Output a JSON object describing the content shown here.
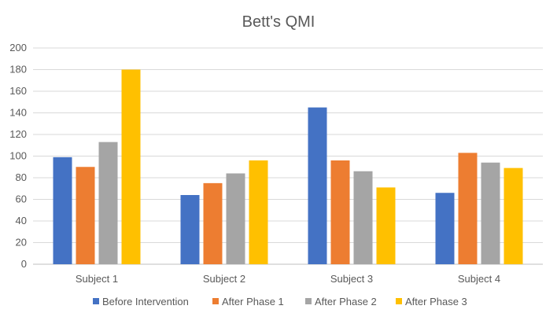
{
  "chart_data": {
    "type": "bar",
    "title": "Bett's QMI",
    "xlabel": "",
    "ylabel": "",
    "categories": [
      "Subject 1",
      "Subject 2",
      "Subject 3",
      "Subject 4"
    ],
    "ylim": [
      0,
      200
    ],
    "yticks": [
      0,
      20,
      40,
      60,
      80,
      100,
      120,
      140,
      160,
      180,
      200
    ],
    "grid": true,
    "legend_position": "bottom",
    "series": [
      {
        "name": "Before Intervention",
        "color": "#4472C4",
        "values": [
          99,
          64,
          145,
          66
        ]
      },
      {
        "name": "After Phase 1",
        "color": "#ED7D31",
        "values": [
          90,
          75,
          96,
          103
        ]
      },
      {
        "name": "After Phase 2",
        "color": "#A5A5A5",
        "values": [
          113,
          84,
          86,
          94
        ]
      },
      {
        "name": "After Phase 3",
        "color": "#FFC000",
        "values": [
          180,
          96,
          71,
          89
        ]
      }
    ]
  }
}
